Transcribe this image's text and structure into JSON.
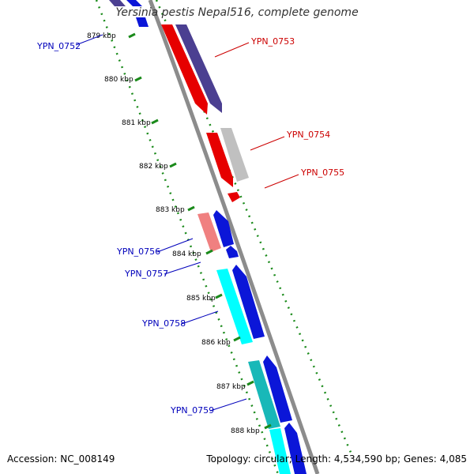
{
  "title": "Yersinia pestis Nepal516, complete genome",
  "footer": {
    "accession": "Accession: NC_008149",
    "summary": "Topology: circular; Length: 4,534,590 bp; Genes: 4,085"
  },
  "colors": {
    "backbone": "#8c8c8c",
    "tick": "#1a8a1a",
    "label_forward": "#cc0000",
    "label_reverse": "#0000bb"
  },
  "ticks": [
    "879 kbp",
    "880 kbp",
    "881 kbp",
    "882 kbp",
    "883 kbp",
    "884 kbp",
    "885 kbp",
    "886 kbp",
    "887 kbp",
    "888 kbp"
  ],
  "genes": [
    {
      "label": "YPN_0752",
      "strand": "reverse"
    },
    {
      "label": "YPN_0753",
      "strand": "forward"
    },
    {
      "label": "YPN_0754",
      "strand": "forward"
    },
    {
      "label": "YPN_0755",
      "strand": "forward"
    },
    {
      "label": "YPN_0756",
      "strand": "reverse"
    },
    {
      "label": "YPN_0757",
      "strand": "reverse"
    },
    {
      "label": "YPN_0758",
      "strand": "reverse"
    },
    {
      "label": "YPN_0759",
      "strand": "reverse"
    }
  ]
}
